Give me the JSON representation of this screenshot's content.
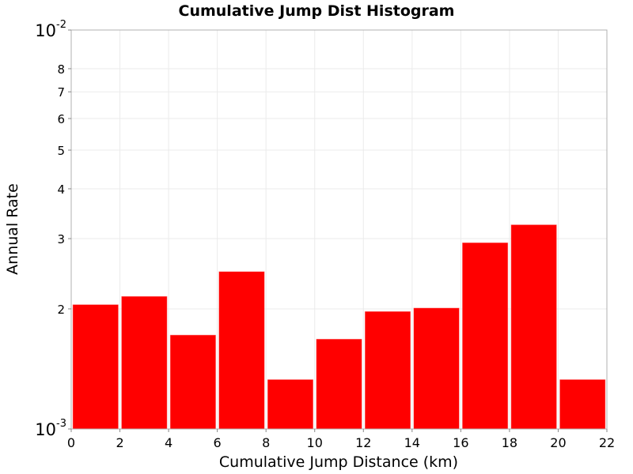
{
  "chart_data": {
    "type": "bar",
    "title": "Cumulative Jump Dist Histogram",
    "xlabel": "Cumulative Jump Distance (km)",
    "ylabel": "Annual Rate",
    "xlim": [
      0,
      22
    ],
    "ylim": [
      0.001,
      0.01
    ],
    "yscale": "log",
    "grid": true,
    "bar_color": "#ff0000",
    "bin_width": 2,
    "x_ticks": [
      0,
      2,
      4,
      6,
      8,
      10,
      12,
      14,
      16,
      18,
      20,
      22
    ],
    "x_tick_labels": [
      "0",
      "2",
      "4",
      "6",
      "8",
      "10",
      "12",
      "14",
      "16",
      "18",
      "20",
      "22"
    ],
    "y_ticks": [
      {
        "value": 0.001,
        "label": "10",
        "exp": "-3",
        "major": true
      },
      {
        "value": 0.002,
        "label": "2",
        "major": false
      },
      {
        "value": 0.003,
        "label": "3",
        "major": false
      },
      {
        "value": 0.004,
        "label": "4",
        "major": false
      },
      {
        "value": 0.005,
        "label": "5",
        "major": false
      },
      {
        "value": 0.006,
        "label": "6",
        "major": false
      },
      {
        "value": 0.007,
        "label": "7",
        "major": false
      },
      {
        "value": 0.008,
        "label": "8",
        "major": false
      },
      {
        "value": 0.01,
        "label": "10",
        "exp": "-2",
        "major": true
      }
    ],
    "bin_centers": [
      1,
      3,
      5,
      7,
      9,
      11,
      13,
      15,
      17,
      19,
      21
    ],
    "values": [
      0.00205,
      0.00215,
      0.00172,
      0.00248,
      0.00133,
      0.00168,
      0.00197,
      0.00201,
      0.00293,
      0.00325,
      0.00133
    ]
  }
}
